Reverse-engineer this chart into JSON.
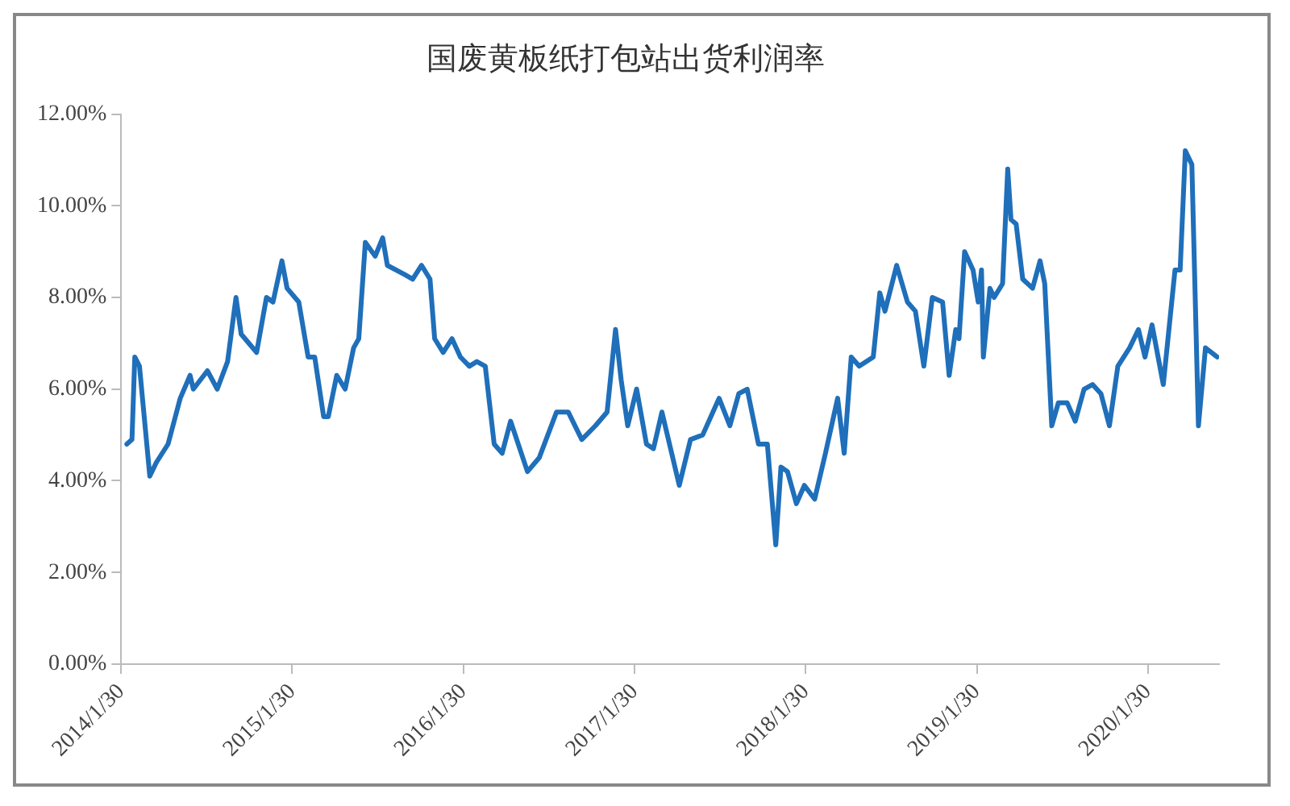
{
  "chart_data": {
    "type": "line",
    "title": "国废黄板纸打包站出货利润率",
    "xlim": [
      "2014-01-30",
      "2020-06-30"
    ],
    "xticks": [
      {
        "value": "2014-01-30",
        "label": "2014/1/30"
      },
      {
        "value": "2015-01-30",
        "label": "2015/1/30"
      },
      {
        "value": "2016-01-30",
        "label": "2016/1/30"
      },
      {
        "value": "2017-01-30",
        "label": "2017/1/30"
      },
      {
        "value": "2018-01-30",
        "label": "2018/1/30"
      },
      {
        "value": "2019-01-30",
        "label": "2019/1/30"
      },
      {
        "value": "2020-01-30",
        "label": "2020/1/30"
      }
    ],
    "ylim": [
      0,
      12
    ],
    "yticks": [
      {
        "value": 0,
        "label": "0.00%"
      },
      {
        "value": 2,
        "label": "2.00%"
      },
      {
        "value": 4,
        "label": "4.00%"
      },
      {
        "value": 6,
        "label": "6.00%"
      },
      {
        "value": 8,
        "label": "8.00%"
      },
      {
        "value": 10,
        "label": "10.00%"
      },
      {
        "value": 12,
        "label": "12.00%"
      }
    ],
    "grid": false,
    "legend": false,
    "marker": "none",
    "line_style": "solid",
    "series": [
      {
        "color": "#1f6fba",
        "x": [
          "2014-02-11",
          "2014-02-22",
          "2014-02-28",
          "2014-03-10",
          "2014-04-01",
          "2014-04-15",
          "2014-05-10",
          "2014-06-05",
          "2014-06-26",
          "2014-07-03",
          "2014-08-02",
          "2014-08-23",
          "2014-09-14",
          "2014-10-02",
          "2014-10-13",
          "2014-11-15",
          "2014-12-06",
          "2014-12-20",
          "2015-01-08",
          "2015-01-19",
          "2015-02-13",
          "2015-03-05",
          "2015-03-19",
          "2015-04-07",
          "2015-04-17",
          "2015-05-05",
          "2015-05-23",
          "2015-06-10",
          "2015-06-21",
          "2015-07-05",
          "2015-07-26",
          "2015-08-11",
          "2015-08-21",
          "2015-09-27",
          "2015-10-14",
          "2015-11-02",
          "2015-11-20",
          "2015-11-30",
          "2015-12-18",
          "2016-01-06",
          "2016-01-24",
          "2016-02-12",
          "2016-02-28",
          "2016-03-17",
          "2016-04-05",
          "2016-04-22",
          "2016-05-10",
          "2016-06-15",
          "2016-07-10",
          "2016-08-16",
          "2016-09-10",
          "2016-10-09",
          "2016-11-07",
          "2016-12-02",
          "2016-12-20",
          "2017-01-01",
          "2017-01-15",
          "2017-02-03",
          "2017-02-24",
          "2017-03-11",
          "2017-03-29",
          "2017-05-05",
          "2017-05-29",
          "2017-06-24",
          "2017-07-29",
          "2017-08-21",
          "2017-09-09",
          "2017-09-27",
          "2017-10-21",
          "2017-11-09",
          "2017-11-27",
          "2017-12-08",
          "2017-12-22",
          "2018-01-10",
          "2018-01-27",
          "2018-02-18",
          "2018-03-13",
          "2018-04-08",
          "2018-04-22",
          "2018-05-07",
          "2018-05-24",
          "2018-06-23",
          "2018-07-07",
          "2018-07-18",
          "2018-08-12",
          "2018-09-04",
          "2018-09-21",
          "2018-10-09",
          "2018-10-27",
          "2018-11-18",
          "2018-12-02",
          "2018-12-16",
          "2018-12-23",
          "2019-01-04",
          "2019-01-22",
          "2019-02-02",
          "2019-02-09",
          "2019-02-13",
          "2019-02-27",
          "2019-03-08",
          "2019-03-26",
          "2019-04-06",
          "2019-04-13",
          "2019-04-24",
          "2019-05-08",
          "2019-05-29",
          "2019-06-14",
          "2019-06-24",
          "2019-07-09",
          "2019-07-23",
          "2019-08-11",
          "2019-08-28",
          "2019-09-16",
          "2019-10-04",
          "2019-10-22",
          "2019-11-09",
          "2019-11-27",
          "2019-12-22",
          "2020-01-10",
          "2020-01-24",
          "2020-02-08",
          "2020-03-03",
          "2020-03-28",
          "2020-04-08",
          "2020-04-19",
          "2020-05-03",
          "2020-05-17",
          "2020-06-01",
          "2020-06-26"
        ],
        "values": [
          4.8,
          4.9,
          6.7,
          6.5,
          4.1,
          4.4,
          4.8,
          5.8,
          6.3,
          6.0,
          6.4,
          6.0,
          6.6,
          8.0,
          7.2,
          6.8,
          8.0,
          7.9,
          8.8,
          8.2,
          7.9,
          6.7,
          6.7,
          5.4,
          5.4,
          6.3,
          6.0,
          6.9,
          7.1,
          9.2,
          8.9,
          9.3,
          8.7,
          8.5,
          8.4,
          8.7,
          8.4,
          7.1,
          6.8,
          7.1,
          6.7,
          6.5,
          6.6,
          6.5,
          4.8,
          4.6,
          5.3,
          4.2,
          4.5,
          5.5,
          5.5,
          4.9,
          5.2,
          5.5,
          7.3,
          6.2,
          5.2,
          6.0,
          4.8,
          4.7,
          5.5,
          3.9,
          4.9,
          5.0,
          5.8,
          5.2,
          5.9,
          6.0,
          4.8,
          4.8,
          2.6,
          4.3,
          4.2,
          3.5,
          3.9,
          3.6,
          4.6,
          5.8,
          4.6,
          6.7,
          6.5,
          6.7,
          8.1,
          7.7,
          8.7,
          7.9,
          7.7,
          6.5,
          8.0,
          7.9,
          6.3,
          7.3,
          7.1,
          9.0,
          8.6,
          7.9,
          8.6,
          6.7,
          8.2,
          8.0,
          8.3,
          10.8,
          9.7,
          9.6,
          8.4,
          8.2,
          8.8,
          8.3,
          5.2,
          5.7,
          5.7,
          5.3,
          6.0,
          6.1,
          5.9,
          5.2,
          6.5,
          6.9,
          7.3,
          6.7,
          7.4,
          6.1,
          8.6,
          8.6,
          11.2,
          10.9,
          5.2,
          6.9,
          6.7
        ]
      }
    ]
  }
}
